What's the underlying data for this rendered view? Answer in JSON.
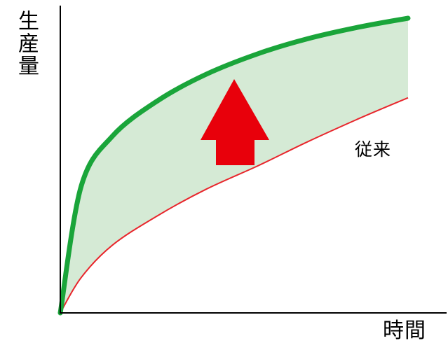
{
  "chart_data": {
    "type": "area",
    "ylabel": "生産量",
    "xlabel": "時間",
    "annotations": [
      "従来"
    ],
    "grid": false,
    "series": [
      {
        "values": [
          0.0,
          0.43,
          0.6,
          0.72,
          0.81,
          0.88,
          0.93,
          0.97,
          1.0
        ],
        "color": "#1aa53a"
      },
      {
        "values": [
          0.0,
          0.12,
          0.23,
          0.33,
          0.42,
          0.5,
          0.58,
          0.66,
          0.73
        ],
        "color": "#e8262c"
      }
    ],
    "x": [
      0,
      0.06,
      0.15,
      0.28,
      0.42,
      0.57,
      0.71,
      0.86,
      1.0
    ],
    "fill_color": "#d5ead5",
    "arrow_color": "#e8000b"
  }
}
